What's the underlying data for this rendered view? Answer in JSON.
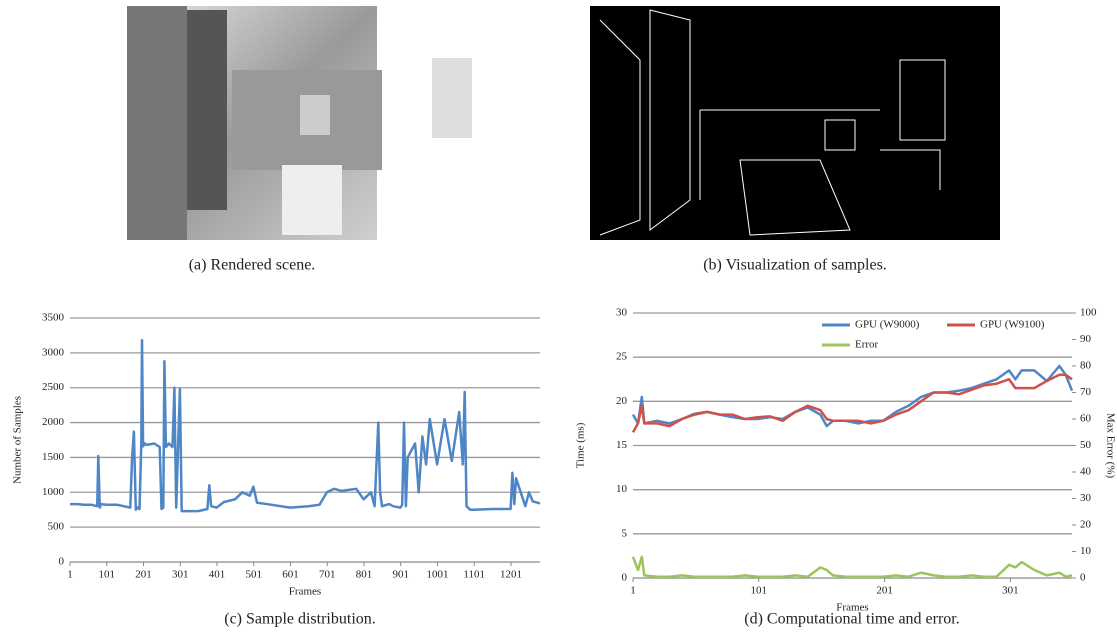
{
  "figure": {
    "captions": [
      "(a) Rendered scene.",
      "(b) Visualization of samples.",
      "(c) Sample distribution.",
      "(d) Computational time and error."
    ]
  },
  "chart_data": [
    {
      "type": "line",
      "xlabel": "Frames",
      "ylabel": "Number of Samples",
      "xlim": [
        1,
        1280
      ],
      "xticks": [
        1,
        101,
        201,
        301,
        401,
        501,
        601,
        701,
        801,
        901,
        1001,
        1101,
        1201
      ],
      "ylim": [
        0,
        3500
      ],
      "yticks": [
        0,
        500,
        1000,
        1500,
        2000,
        2500,
        3000,
        3500
      ],
      "grid": true,
      "x": [
        1,
        20,
        40,
        60,
        75,
        78,
        82,
        85,
        100,
        130,
        165,
        170,
        175,
        180,
        185,
        190,
        195,
        197,
        200,
        205,
        210,
        230,
        245,
        250,
        255,
        258,
        262,
        270,
        280,
        285,
        290,
        300,
        305,
        310,
        320,
        350,
        375,
        380,
        385,
        400,
        420,
        450,
        470,
        490,
        500,
        510,
        550,
        600,
        650,
        680,
        700,
        720,
        740,
        780,
        800,
        820,
        830,
        840,
        845,
        850,
        870,
        880,
        900,
        905,
        910,
        915,
        920,
        940,
        950,
        960,
        970,
        980,
        1000,
        1020,
        1040,
        1060,
        1070,
        1075,
        1080,
        1090,
        1100,
        1150,
        1200,
        1205,
        1210,
        1215,
        1240,
        1250,
        1260,
        1280
      ],
      "series": [
        {
          "color": "#4f86c6",
          "values": [
            830,
            830,
            820,
            820,
            800,
            1520,
            780,
            830,
            820,
            820,
            780,
            1500,
            1870,
            750,
            780,
            760,
            1700,
            3180,
            1660,
            1700,
            1680,
            1700,
            1650,
            760,
            780,
            2880,
            1650,
            1700,
            1650,
            2500,
            780,
            2480,
            730,
            730,
            730,
            730,
            760,
            1100,
            800,
            780,
            860,
            900,
            1000,
            950,
            1080,
            850,
            820,
            780,
            800,
            820,
            1000,
            1050,
            1020,
            1050,
            900,
            1000,
            800,
            2000,
            1000,
            800,
            830,
            800,
            780,
            820,
            2000,
            800,
            1500,
            1700,
            1000,
            1800,
            1400,
            2050,
            1400,
            2050,
            1450,
            2150,
            1400,
            2440,
            800,
            750,
            750,
            760,
            760,
            1280,
            830,
            1200,
            800,
            1000,
            870,
            840
          ]
        }
      ]
    },
    {
      "type": "line",
      "xlabel": "Frames",
      "ylabel": "Time (ms)",
      "y2label": "Max Error (%)",
      "xlim": [
        1,
        350
      ],
      "xticks": [
        1,
        101,
        201,
        301
      ],
      "ylim": [
        0,
        30
      ],
      "yticks": [
        0,
        5,
        10,
        15,
        20,
        25,
        30
      ],
      "y2lim": [
        0,
        100
      ],
      "y2ticks": [
        0,
        10,
        20,
        30,
        40,
        50,
        60,
        70,
        80,
        90,
        100
      ],
      "grid": true,
      "legend": "upper right",
      "x": [
        1,
        5,
        8,
        10,
        20,
        30,
        40,
        50,
        60,
        70,
        80,
        90,
        100,
        110,
        120,
        130,
        140,
        150,
        155,
        160,
        170,
        180,
        190,
        200,
        210,
        220,
        230,
        240,
        250,
        260,
        270,
        280,
        290,
        300,
        305,
        310,
        320,
        330,
        340,
        345,
        350
      ],
      "series": [
        {
          "name": "GPU (W9000)",
          "color": "#4f86c6",
          "values": [
            18.5,
            17.5,
            20.5,
            17.5,
            17.8,
            17.5,
            18.0,
            18.6,
            18.8,
            18.5,
            18.2,
            18.0,
            18.0,
            18.2,
            18.0,
            18.8,
            19.3,
            18.5,
            17.2,
            17.8,
            17.8,
            17.5,
            17.8,
            17.8,
            18.8,
            19.5,
            20.5,
            21.0,
            21.0,
            21.2,
            21.5,
            22.0,
            22.5,
            23.5,
            22.5,
            23.5,
            23.5,
            22.3,
            24.0,
            23.0,
            21.2
          ]
        },
        {
          "name": "GPU (W9100)",
          "color": "#d2504a",
          "values": [
            16.5,
            17.5,
            19.5,
            17.5,
            17.5,
            17.2,
            18.0,
            18.5,
            18.8,
            18.5,
            18.5,
            18.0,
            18.2,
            18.3,
            17.8,
            18.8,
            19.5,
            19.0,
            18.0,
            17.8,
            17.8,
            17.8,
            17.5,
            17.8,
            18.5,
            19.0,
            20.0,
            21.0,
            21.0,
            20.8,
            21.3,
            21.8,
            22.0,
            22.5,
            21.5,
            21.5,
            21.5,
            22.3,
            23.0,
            23.0,
            22.5
          ]
        },
        {
          "name": "Error",
          "color": "#9bc55a",
          "axis": "y2",
          "values": [
            8,
            3,
            8,
            1,
            0.5,
            0.5,
            1,
            0.5,
            0.5,
            0.5,
            0.5,
            1,
            0.5,
            0.5,
            0.5,
            1,
            0.5,
            4,
            3,
            1,
            0.5,
            0.5,
            0.5,
            0.5,
            1,
            0.5,
            2,
            1,
            0.5,
            0.5,
            1,
            0.5,
            0.5,
            5,
            4,
            6,
            3,
            1,
            2,
            0.5,
            1
          ]
        }
      ]
    }
  ]
}
